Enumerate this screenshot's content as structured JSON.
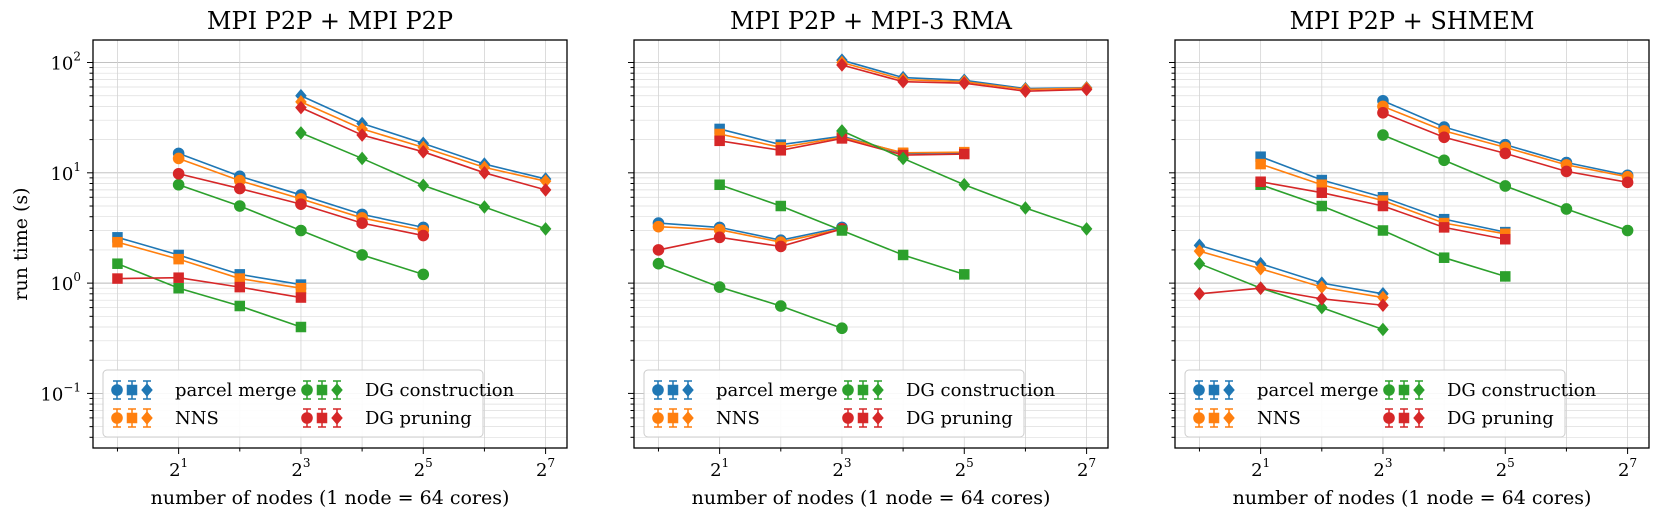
{
  "figure": {
    "ylabel": "run time (s)",
    "xlabel": "number of nodes (1 node = 64 cores)",
    "x_scale": "log2",
    "y_scale": "log10",
    "xlim_log2": [
      -0.4,
      7.35
    ],
    "ylim": [
      0.032,
      160
    ],
    "x_ticks": [
      {
        "base": "2",
        "exp": "1",
        "value": 2
      },
      {
        "base": "2",
        "exp": "3",
        "value": 8
      },
      {
        "base": "2",
        "exp": "5",
        "value": 32
      },
      {
        "base": "2",
        "exp": "7",
        "value": 128
      }
    ],
    "y_ticks": [
      {
        "base": "10",
        "exp": "−1",
        "value": 0.1
      },
      {
        "base": "10",
        "exp": "0",
        "value": 1
      },
      {
        "base": "10",
        "exp": "1",
        "value": 10
      },
      {
        "base": "10",
        "exp": "2",
        "value": 100
      }
    ],
    "colors": {
      "parcel merge": "#1f77b4",
      "NNS": "#ff7f0e",
      "DG construction": "#2ca02c",
      "DG pruning": "#d62728"
    },
    "marker_shapes": [
      "circle",
      "square",
      "diamond"
    ],
    "legend": {
      "placement": "lower-left",
      "entries": [
        "parcel merge",
        "NNS",
        "DG construction",
        "DG pruning"
      ]
    }
  },
  "chart_data": [
    {
      "type": "line",
      "title": "MPI P2P + MPI P2P",
      "series": [
        {
          "name": "parcel merge",
          "marker": "square",
          "x": [
            1,
            2,
            4,
            8
          ],
          "y": [
            2.6,
            1.8,
            1.2,
            0.97
          ]
        },
        {
          "name": "NNS",
          "marker": "square",
          "x": [
            1,
            2,
            4,
            8
          ],
          "y": [
            2.35,
            1.65,
            1.1,
            0.9
          ]
        },
        {
          "name": "DG construction",
          "marker": "square",
          "x": [
            1,
            2,
            4,
            8
          ],
          "y": [
            1.5,
            0.9,
            0.62,
            0.4
          ]
        },
        {
          "name": "DG pruning",
          "marker": "square",
          "x": [
            1,
            2,
            4,
            8
          ],
          "y": [
            1.1,
            1.12,
            0.92,
            0.74
          ]
        },
        {
          "name": "parcel merge",
          "marker": "circle",
          "x": [
            2,
            4,
            8,
            16,
            32
          ],
          "y": [
            15,
            9.3,
            6.3,
            4.2,
            3.2
          ]
        },
        {
          "name": "NNS",
          "marker": "circle",
          "x": [
            2,
            4,
            8,
            16,
            32
          ],
          "y": [
            13.5,
            8.5,
            5.8,
            3.9,
            3.0
          ]
        },
        {
          "name": "DG construction",
          "marker": "circle",
          "x": [
            2,
            4,
            8,
            16,
            32
          ],
          "y": [
            7.8,
            5.0,
            3.0,
            1.8,
            1.2
          ]
        },
        {
          "name": "DG pruning",
          "marker": "circle",
          "x": [
            2,
            4,
            8,
            16,
            32
          ],
          "y": [
            9.8,
            7.2,
            5.2,
            3.5,
            2.7
          ]
        },
        {
          "name": "parcel merge",
          "marker": "diamond",
          "x": [
            8,
            16,
            32,
            64,
            128
          ],
          "y": [
            50,
            28,
            18.5,
            12,
            8.8
          ]
        },
        {
          "name": "NNS",
          "marker": "diamond",
          "x": [
            8,
            16,
            32,
            64,
            128
          ],
          "y": [
            44,
            25,
            17,
            11.2,
            8.4
          ]
        },
        {
          "name": "DG construction",
          "marker": "diamond",
          "x": [
            8,
            16,
            32,
            64,
            128
          ],
          "y": [
            23,
            13.5,
            7.7,
            4.9,
            3.1
          ]
        },
        {
          "name": "DG pruning",
          "marker": "diamond",
          "x": [
            8,
            16,
            32,
            64,
            128
          ],
          "y": [
            39,
            22,
            15.5,
            10,
            7.0
          ]
        }
      ]
    },
    {
      "type": "line",
      "title": "MPI P2P + MPI-3 RMA",
      "series": [
        {
          "name": "parcel merge",
          "marker": "circle",
          "x": [
            1,
            2,
            4,
            8
          ],
          "y": [
            3.5,
            3.2,
            2.45,
            3.2
          ]
        },
        {
          "name": "NNS",
          "marker": "circle",
          "x": [
            1,
            2,
            4,
            8
          ],
          "y": [
            3.25,
            3.05,
            2.35,
            3.1
          ]
        },
        {
          "name": "DG construction",
          "marker": "circle",
          "x": [
            1,
            2,
            4,
            8
          ],
          "y": [
            1.5,
            0.92,
            0.62,
            0.39
          ]
        },
        {
          "name": "DG pruning",
          "marker": "circle",
          "x": [
            1,
            2,
            4,
            8
          ],
          "y": [
            2.0,
            2.6,
            2.15,
            3.1
          ]
        },
        {
          "name": "parcel merge",
          "marker": "square",
          "x": [
            2,
            4,
            8,
            16,
            32
          ],
          "y": [
            25,
            18,
            21.5,
            15,
            15.2
          ]
        },
        {
          "name": "NNS",
          "marker": "square",
          "x": [
            2,
            4,
            8,
            16,
            32
          ],
          "y": [
            22.5,
            17,
            21,
            15.2,
            15.4
          ]
        },
        {
          "name": "DG construction",
          "marker": "square",
          "x": [
            2,
            4,
            8,
            16,
            32
          ],
          "y": [
            7.8,
            5.0,
            3.0,
            1.8,
            1.2
          ]
        },
        {
          "name": "DG pruning",
          "marker": "square",
          "x": [
            2,
            4,
            8,
            16,
            32
          ],
          "y": [
            19.5,
            16,
            20.5,
            14.5,
            14.8
          ]
        },
        {
          "name": "parcel merge",
          "marker": "diamond",
          "x": [
            8,
            16,
            32,
            64,
            128
          ],
          "y": [
            105,
            73,
            69,
            58,
            59
          ]
        },
        {
          "name": "NNS",
          "marker": "diamond",
          "x": [
            8,
            16,
            32,
            64,
            128
          ],
          "y": [
            100,
            70,
            67,
            57,
            58.5
          ]
        },
        {
          "name": "DG construction",
          "marker": "diamond",
          "x": [
            8,
            16,
            32,
            64,
            128
          ],
          "y": [
            24,
            13.5,
            7.8,
            4.8,
            3.1
          ]
        },
        {
          "name": "DG pruning",
          "marker": "diamond",
          "x": [
            8,
            16,
            32,
            64,
            128
          ],
          "y": [
            95,
            67,
            65,
            55,
            57
          ]
        }
      ]
    },
    {
      "type": "line",
      "title": "MPI P2P + SHMEM",
      "series": [
        {
          "name": "parcel merge",
          "marker": "diamond",
          "x": [
            1,
            2,
            4,
            8
          ],
          "y": [
            2.2,
            1.5,
            1.0,
            0.8
          ]
        },
        {
          "name": "NNS",
          "marker": "diamond",
          "x": [
            1,
            2,
            4,
            8
          ],
          "y": [
            1.95,
            1.35,
            0.92,
            0.74
          ]
        },
        {
          "name": "DG construction",
          "marker": "diamond",
          "x": [
            1,
            2,
            4,
            8
          ],
          "y": [
            1.5,
            0.9,
            0.6,
            0.38
          ]
        },
        {
          "name": "DG pruning",
          "marker": "diamond",
          "x": [
            1,
            2,
            4,
            8
          ],
          "y": [
            0.8,
            0.9,
            0.72,
            0.63
          ]
        },
        {
          "name": "parcel merge",
          "marker": "square",
          "x": [
            2,
            4,
            8,
            16,
            32
          ],
          "y": [
            14,
            8.6,
            6.0,
            3.8,
            2.9
          ]
        },
        {
          "name": "NNS",
          "marker": "square",
          "x": [
            2,
            4,
            8,
            16,
            32
          ],
          "y": [
            12,
            7.8,
            5.6,
            3.5,
            2.8
          ]
        },
        {
          "name": "DG construction",
          "marker": "square",
          "x": [
            2,
            4,
            8,
            16,
            32
          ],
          "y": [
            7.8,
            5.0,
            3.0,
            1.7,
            1.15
          ]
        },
        {
          "name": "DG pruning",
          "marker": "square",
          "x": [
            2,
            4,
            8,
            16,
            32
          ],
          "y": [
            8.3,
            6.6,
            5.0,
            3.2,
            2.5
          ]
        },
        {
          "name": "parcel merge",
          "marker": "circle",
          "x": [
            8,
            16,
            32,
            64,
            128
          ],
          "y": [
            45,
            26,
            18,
            12.4,
            9.5
          ]
        },
        {
          "name": "NNS",
          "marker": "circle",
          "x": [
            8,
            16,
            32,
            64,
            128
          ],
          "y": [
            40,
            24,
            17,
            11.8,
            9.2
          ]
        },
        {
          "name": "DG construction",
          "marker": "circle",
          "x": [
            8,
            16,
            32,
            64,
            128
          ],
          "y": [
            22,
            13,
            7.6,
            4.7,
            3.0
          ]
        },
        {
          "name": "DG pruning",
          "marker": "circle",
          "x": [
            8,
            16,
            32,
            64,
            128
          ],
          "y": [
            35,
            21,
            15,
            10.3,
            8.2
          ]
        }
      ]
    }
  ]
}
